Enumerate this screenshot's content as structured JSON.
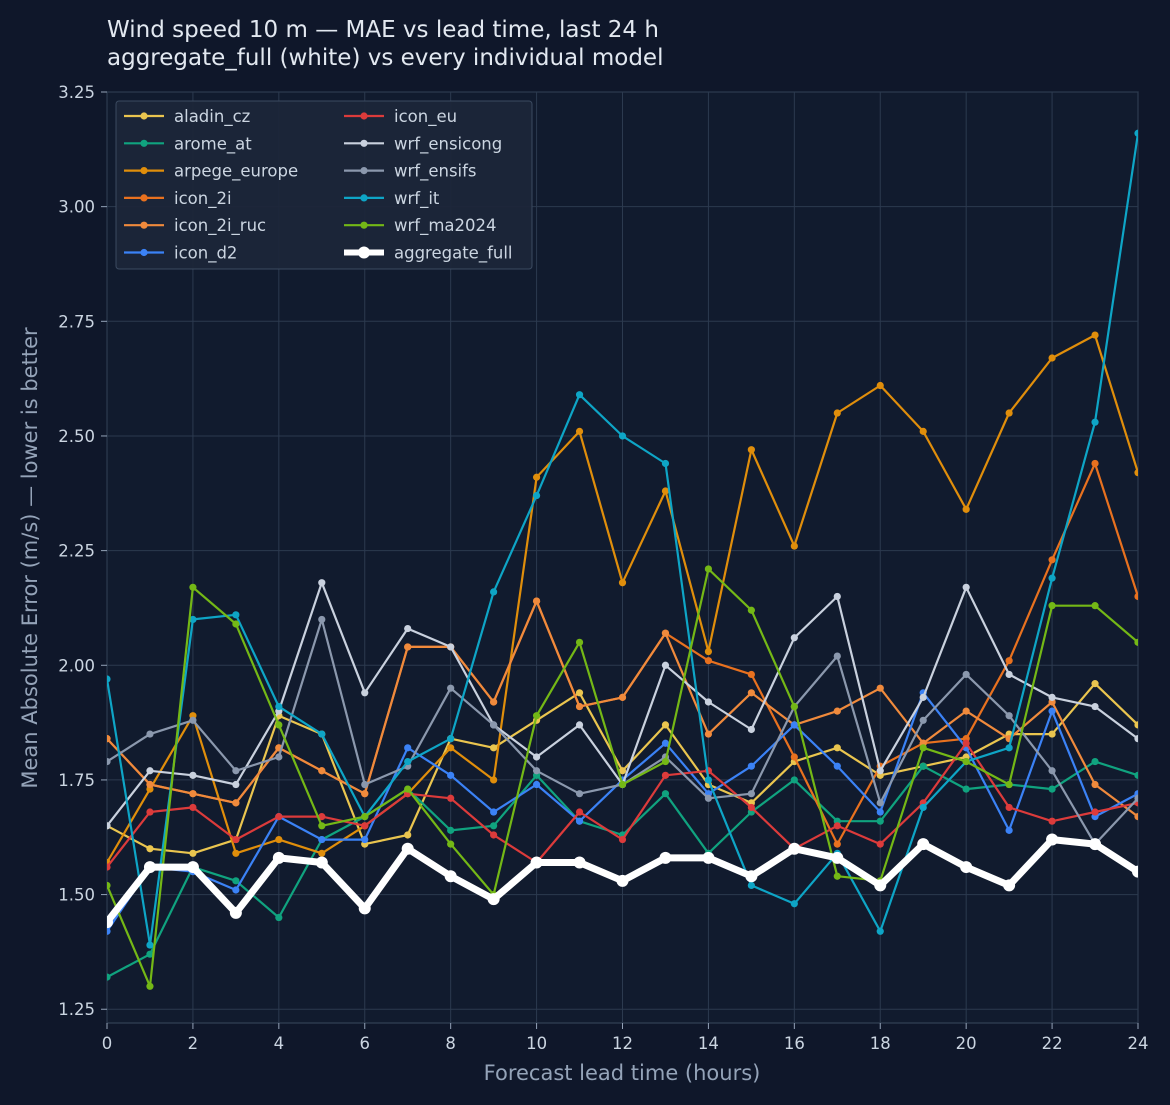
{
  "chart_data": {
    "type": "line",
    "title": "Wind speed 10 m — MAE vs lead time, last 24 h",
    "subtitle": "aggregate_full (white) vs every individual model",
    "xlabel": "Forecast lead time (hours)",
    "ylabel": "Mean Absolute Error (m/s) — lower is better",
    "xlim": [
      0,
      24
    ],
    "ylim": [
      1.22,
      3.25
    ],
    "xticks": [
      0,
      2,
      4,
      6,
      8,
      10,
      12,
      14,
      16,
      18,
      20,
      22,
      24
    ],
    "yticks": [
      1.25,
      1.5,
      1.75,
      2.0,
      2.25,
      2.5,
      2.75,
      3.0,
      3.25
    ],
    "ytick_labels": [
      "1.25",
      "1.50",
      "1.75",
      "2.00",
      "2.25",
      "2.50",
      "2.75",
      "3.00",
      "3.25"
    ],
    "grid": true,
    "legend_position": "top-left",
    "x": [
      0,
      1,
      2,
      3,
      4,
      5,
      6,
      7,
      8,
      9,
      10,
      11,
      12,
      13,
      14,
      15,
      16,
      17,
      18,
      19,
      20,
      21,
      22,
      23,
      24
    ],
    "series": [
      {
        "name": "aladin_cz",
        "color": "#eac54f",
        "values": [
          1.65,
          1.6,
          1.59,
          1.62,
          1.89,
          1.85,
          1.61,
          1.63,
          1.84,
          1.82,
          1.88,
          1.94,
          1.77,
          1.87,
          1.74,
          1.7,
          1.79,
          1.82,
          1.76,
          1.78,
          1.8,
          1.85,
          1.85,
          1.96,
          1.87
        ]
      },
      {
        "name": "arome_at",
        "color": "#10a37f",
        "values": [
          1.32,
          1.37,
          1.56,
          1.53,
          1.45,
          1.62,
          1.67,
          1.73,
          1.64,
          1.65,
          1.76,
          1.66,
          1.63,
          1.72,
          1.59,
          1.68,
          1.75,
          1.66,
          1.66,
          1.78,
          1.73,
          1.74,
          1.73,
          1.79,
          1.76
        ]
      },
      {
        "name": "arpege_europe",
        "color": "#e08e0b",
        "values": [
          1.57,
          1.73,
          1.89,
          1.59,
          1.62,
          1.59,
          1.65,
          1.72,
          1.82,
          1.75,
          2.41,
          2.51,
          2.18,
          2.38,
          2.03,
          2.47,
          2.26,
          2.55,
          2.61,
          2.51,
          2.34,
          2.55,
          2.67,
          2.72,
          2.42
        ]
      },
      {
        "name": "icon_2i",
        "color": "#e8711f",
        "values": [
          1.84,
          1.74,
          1.72,
          1.7,
          1.82,
          1.77,
          1.72,
          2.04,
          2.04,
          1.92,
          2.14,
          1.91,
          1.93,
          2.07,
          2.01,
          1.98,
          1.8,
          1.61,
          1.78,
          1.83,
          1.84,
          2.01,
          2.23,
          2.44,
          2.15
        ]
      },
      {
        "name": "icon_2i_ruc",
        "color": "#f08a3c",
        "values": [
          1.84,
          1.74,
          1.72,
          1.7,
          1.82,
          1.77,
          1.72,
          2.04,
          2.04,
          1.92,
          2.14,
          1.91,
          1.93,
          2.07,
          1.85,
          1.94,
          1.87,
          1.9,
          1.95,
          1.83,
          1.9,
          1.84,
          1.92,
          1.74,
          1.67
        ]
      },
      {
        "name": "icon_d2",
        "color": "#3b82f6",
        "values": [
          1.42,
          1.56,
          1.55,
          1.51,
          1.67,
          1.62,
          1.62,
          1.82,
          1.76,
          1.68,
          1.74,
          1.66,
          1.75,
          1.83,
          1.72,
          1.78,
          1.87,
          1.78,
          1.68,
          1.94,
          1.82,
          1.64,
          1.9,
          1.67,
          1.72
        ]
      },
      {
        "name": "icon_eu",
        "color": "#dc3b3b",
        "values": [
          1.56,
          1.68,
          1.69,
          1.62,
          1.67,
          1.67,
          1.65,
          1.72,
          1.71,
          1.63,
          1.57,
          1.68,
          1.62,
          1.76,
          1.77,
          1.69,
          1.6,
          1.65,
          1.61,
          1.7,
          1.83,
          1.69,
          1.66,
          1.68,
          1.7
        ]
      },
      {
        "name": "wrf_ensicong",
        "color": "#c9d1de",
        "values": [
          1.65,
          1.77,
          1.76,
          1.74,
          1.9,
          2.18,
          1.94,
          2.08,
          2.04,
          1.87,
          1.8,
          1.87,
          1.74,
          2.0,
          1.92,
          1.86,
          2.06,
          2.15,
          1.77,
          1.93,
          2.17,
          1.98,
          1.93,
          1.91,
          1.84
        ]
      },
      {
        "name": "wrf_ensifs",
        "color": "#8b98ad",
        "values": [
          1.79,
          1.85,
          1.88,
          1.77,
          1.8,
          2.1,
          1.74,
          1.78,
          1.95,
          1.87,
          1.77,
          1.72,
          1.74,
          1.8,
          1.71,
          1.72,
          1.91,
          2.02,
          1.7,
          1.88,
          1.98,
          1.89,
          1.77,
          1.61,
          1.71
        ]
      },
      {
        "name": "wrf_it",
        "color": "#0ea5c6",
        "values": [
          1.97,
          1.39,
          2.1,
          2.11,
          1.91,
          1.85,
          1.67,
          1.79,
          1.84,
          2.16,
          2.37,
          2.59,
          2.5,
          2.44,
          1.75,
          1.52,
          1.48,
          1.59,
          1.42,
          1.69,
          1.79,
          1.82,
          2.19,
          2.53,
          3.16
        ]
      },
      {
        "name": "wrf_ma2024",
        "color": "#74b816",
        "values": [
          1.52,
          1.3,
          2.17,
          2.09,
          1.87,
          1.65,
          1.67,
          1.73,
          1.61,
          1.5,
          1.89,
          2.05,
          1.74,
          1.79,
          2.21,
          2.12,
          1.91,
          1.54,
          1.53,
          1.82,
          1.79,
          1.74,
          2.13,
          2.13,
          2.05
        ]
      },
      {
        "name": "aggregate_full",
        "color": "#ffffff",
        "values": [
          1.44,
          1.56,
          1.56,
          1.46,
          1.58,
          1.57,
          1.47,
          1.6,
          1.54,
          1.49,
          1.57,
          1.57,
          1.53,
          1.58,
          1.58,
          1.54,
          1.6,
          1.58,
          1.52,
          1.61,
          1.56,
          1.52,
          1.62,
          1.61,
          1.55
        ]
      }
    ],
    "legend_columns": [
      [
        "aladin_cz",
        "arome_at",
        "arpege_europe",
        "icon_2i",
        "icon_2i_ruc",
        "icon_d2"
      ],
      [
        "icon_eu",
        "wrf_ensicong",
        "wrf_ensifs",
        "wrf_it",
        "wrf_ma2024",
        "aggregate_full"
      ]
    ]
  }
}
